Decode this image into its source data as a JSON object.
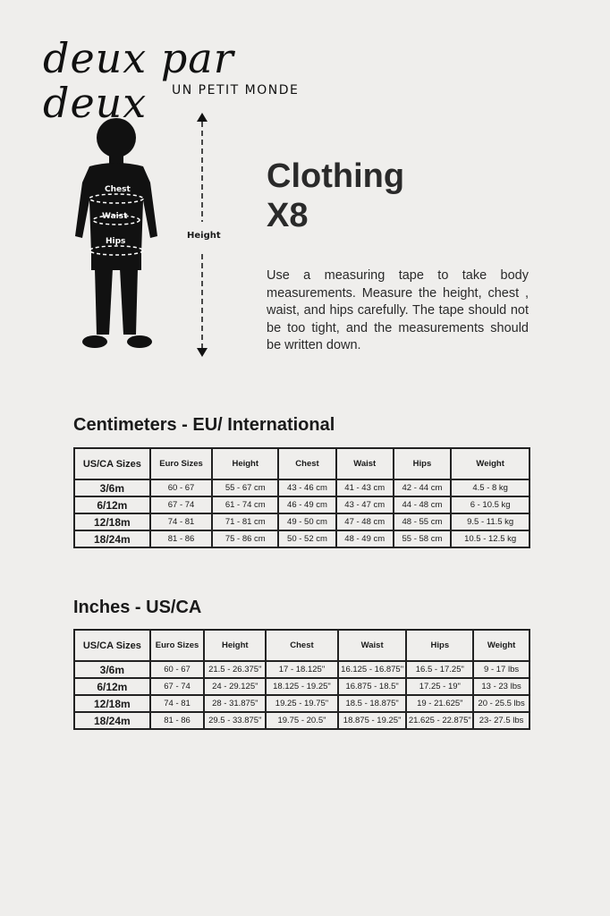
{
  "logo": {
    "name": "deux par deux",
    "tagline": "UN PETIT MONDE"
  },
  "figure": {
    "labels": [
      "Chest",
      "Waist",
      "Hips"
    ],
    "height_label": "Height"
  },
  "title": {
    "line1": "Clothing",
    "line2": "X8"
  },
  "description": "Use a measuring tape to take body measurements. Measure the height, chest , waist, and hips carefully. The tape should not be too tight, and the measurements should be written down.",
  "tables": [
    {
      "heading": "Centimeters - EU/ International",
      "columns": [
        "US/CA Sizes",
        "Euro Sizes",
        "Height",
        "Chest",
        "Waist",
        "Hips",
        "Weight"
      ],
      "rows": [
        [
          "3/6m",
          "60 - 67",
          "55 - 67 cm",
          "43 - 46 cm",
          "41 - 43 cm",
          "42 - 44 cm",
          "4.5 - 8 kg"
        ],
        [
          "6/12m",
          "67 - 74",
          "61 - 74 cm",
          "46 - 49 cm",
          "43 - 47 cm",
          "44 - 48 cm",
          "6 - 10.5 kg"
        ],
        [
          "12/18m",
          "74 - 81",
          "71 - 81 cm",
          "49 - 50 cm",
          "47 - 48 cm",
          "48 - 55 cm",
          "9.5 - 11.5 kg"
        ],
        [
          "18/24m",
          "81 - 86",
          "75 - 86 cm",
          "50 - 52 cm",
          "48 - 49 cm",
          "55 - 58 cm",
          "10.5 - 12.5 kg"
        ]
      ]
    },
    {
      "heading": "Inches - US/CA",
      "columns": [
        "US/CA Sizes",
        "Euro Sizes",
        "Height",
        "Chest",
        "Waist",
        "Hips",
        "Weight"
      ],
      "rows": [
        [
          "3/6m",
          "60 - 67",
          "21.5 - 26.375\"",
          "17 - 18.125\"",
          "16.125 - 16.875\"",
          "16.5 - 17.25\"",
          "9 - 17 lbs"
        ],
        [
          "6/12m",
          "67 - 74",
          "24 - 29.125\"",
          "18.125 - 19.25\"",
          "16.875 - 18.5\"",
          "17.25 - 19\"",
          "13 - 23 lbs"
        ],
        [
          "12/18m",
          "74 - 81",
          "28 - 31.875\"",
          "19.25 - 19.75\"",
          "18.5 - 18.875\"",
          "19 - 21.625\"",
          "20 - 25.5 lbs"
        ],
        [
          "18/24m",
          "81 - 86",
          "29.5 - 33.875\"",
          "19.75 - 20.5\"",
          "18.875 - 19.25\"",
          "21.625 - 22.875\"",
          "23- 27.5 lbs"
        ]
      ]
    }
  ]
}
